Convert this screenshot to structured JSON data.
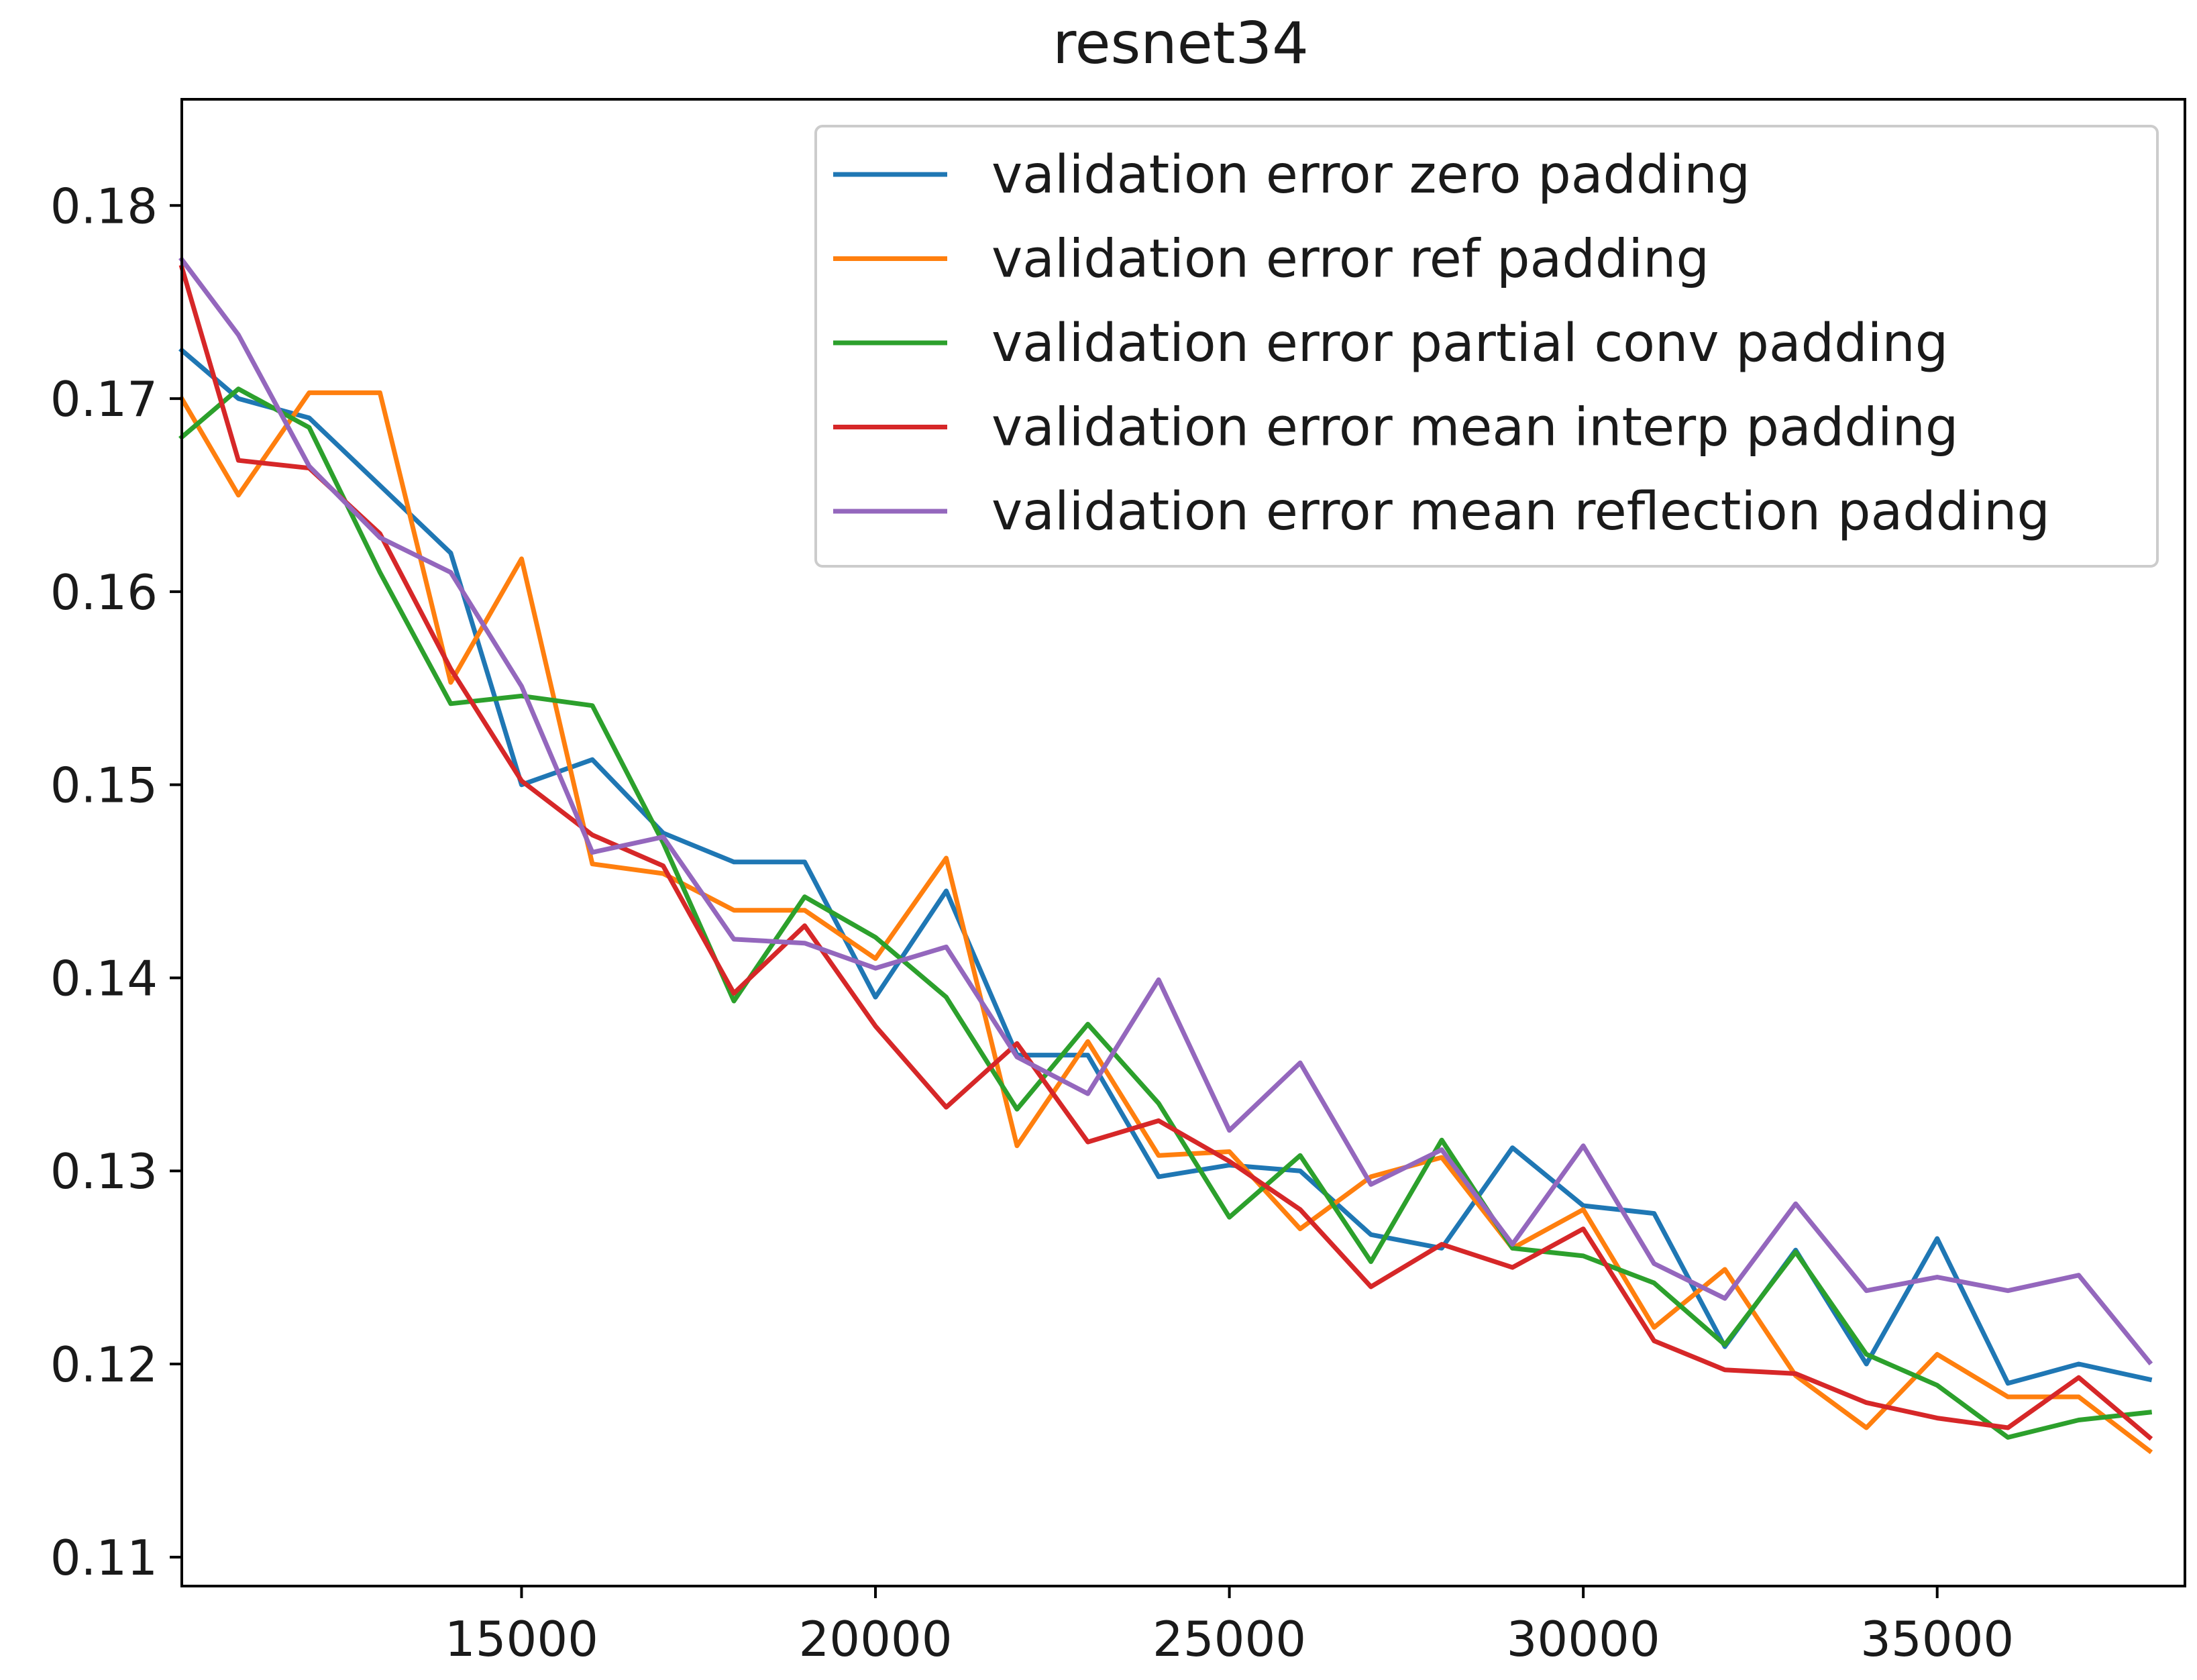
{
  "chart_data": {
    "type": "line",
    "title": "resnet34",
    "xlabel": "",
    "ylabel": "",
    "xlim": [
      10200,
      38500
    ],
    "ylim": [
      0.1085,
      0.1855
    ],
    "x_ticks": [
      15000,
      20000,
      25000,
      30000,
      35000
    ],
    "y_ticks": [
      0.11,
      0.12,
      0.13,
      0.14,
      0.15,
      0.16,
      0.17,
      0.18
    ],
    "grid": false,
    "legend_position": "top-right",
    "x": [
      10200,
      11000,
      12000,
      13000,
      14000,
      15000,
      16000,
      17000,
      18000,
      19000,
      20000,
      21000,
      22000,
      23000,
      24000,
      25000,
      26000,
      27000,
      28000,
      29000,
      30000,
      31000,
      32000,
      33000,
      34000,
      35000,
      36000,
      37000,
      38000
    ],
    "series": [
      {
        "name": "validation error zero padding",
        "color": "#1f77b4",
        "values": [
          0.1725,
          0.17,
          0.169,
          0.1655,
          0.162,
          0.15,
          0.1513,
          0.1475,
          0.146,
          0.146,
          0.139,
          0.1445,
          0.136,
          0.136,
          0.1297,
          0.1303,
          0.13,
          0.1267,
          0.126,
          0.1312,
          0.1282,
          0.1278,
          0.1209,
          0.1259,
          0.12,
          0.1265,
          0.119,
          0.12,
          0.1192
        ]
      },
      {
        "name": "validation error ref padding",
        "color": "#ff7f0e",
        "values": [
          0.17,
          0.165,
          0.1703,
          0.1703,
          0.1553,
          0.1617,
          0.1459,
          0.1454,
          0.1435,
          0.1435,
          0.141,
          0.1462,
          0.1313,
          0.1367,
          0.1308,
          0.131,
          0.127,
          0.1297,
          0.1307,
          0.126,
          0.128,
          0.1219,
          0.1249,
          0.1194,
          0.1167,
          0.1205,
          0.1183,
          0.1183,
          0.1155
        ]
      },
      {
        "name": "validation error partial conv padding",
        "color": "#2ca02c",
        "values": [
          0.168,
          0.1705,
          0.1685,
          0.161,
          0.1542,
          0.1546,
          0.1541,
          0.147,
          0.1388,
          0.1442,
          0.1421,
          0.139,
          0.1332,
          0.1376,
          0.1335,
          0.1276,
          0.1308,
          0.1253,
          0.1316,
          0.126,
          0.1256,
          0.1242,
          0.121,
          0.1258,
          0.1205,
          0.1189,
          0.1162,
          0.1171,
          0.1175
        ]
      },
      {
        "name": "validation error mean interp padding",
        "color": "#d62728",
        "values": [
          0.1768,
          0.1668,
          0.1664,
          0.163,
          0.156,
          0.1502,
          0.1474,
          0.1458,
          0.1392,
          0.1427,
          0.1375,
          0.1333,
          0.1366,
          0.1315,
          0.1326,
          0.1305,
          0.128,
          0.124,
          0.1262,
          0.125,
          0.127,
          0.1212,
          0.1197,
          0.1195,
          0.118,
          0.1172,
          0.1167,
          0.1193,
          0.1162
        ]
      },
      {
        "name": "validation error mean reflection padding",
        "color": "#9467bd",
        "values": [
          0.1772,
          0.1733,
          0.1665,
          0.1628,
          0.161,
          0.1551,
          0.1465,
          0.1473,
          0.142,
          0.1418,
          0.1405,
          0.1416,
          0.1359,
          0.134,
          0.1399,
          0.1321,
          0.1356,
          0.1293,
          0.1311,
          0.1262,
          0.1313,
          0.1252,
          0.1234,
          0.1283,
          0.1238,
          0.1245,
          0.1238,
          0.1246,
          0.1201
        ]
      }
    ]
  }
}
